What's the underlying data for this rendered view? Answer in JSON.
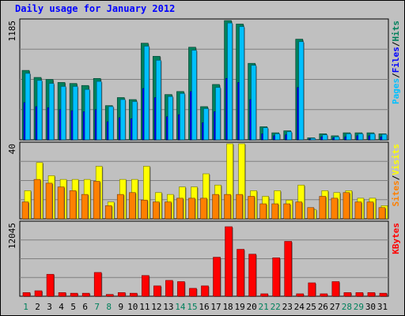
{
  "title": "Daily usage for January 2012",
  "colors": {
    "hits": "#00805c",
    "files": "#0000ff",
    "pages": "#00c0ff",
    "visits": "#ffff00",
    "sites": "#ff8000",
    "kbytes": "#ff0000",
    "weekend_day": "#00805c",
    "weekday": "#000000"
  },
  "chart_data": [
    {
      "type": "bar",
      "ymax_label": "1185",
      "ylim": [
        0,
        1185
      ],
      "grid": true,
      "right_labels": [
        {
          "text": "Pages",
          "color": "#00c0ff"
        },
        {
          "text": "/",
          "color": "#000000"
        },
        {
          "text": "Files",
          "color": "#0000ff"
        },
        {
          "text": "/",
          "color": "#000000"
        },
        {
          "text": "Hits",
          "color": "#00805c"
        }
      ],
      "categories": [
        "1",
        "2",
        "3",
        "4",
        "5",
        "6",
        "7",
        "8",
        "9",
        "10",
        "11",
        "12",
        "13",
        "14",
        "15",
        "16",
        "17",
        "18",
        "19",
        "20",
        "21",
        "22",
        "23",
        "24",
        "25",
        "26",
        "27",
        "28",
        "29",
        "30",
        "31"
      ],
      "series": [
        {
          "name": "Hits",
          "values": [
            690,
            620,
            600,
            570,
            560,
            540,
            610,
            340,
            420,
            400,
            960,
            830,
            450,
            480,
            920,
            330,
            550,
            1185,
            1150,
            760,
            130,
            70,
            90,
            1000,
            20,
            60,
            40,
            70,
            70,
            70,
            60
          ]
        },
        {
          "name": "Files",
          "values": [
            370,
            330,
            320,
            300,
            290,
            280,
            300,
            180,
            220,
            210,
            510,
            420,
            230,
            250,
            480,
            170,
            280,
            610,
            570,
            400,
            60,
            40,
            50,
            520,
            10,
            30,
            20,
            30,
            40,
            40,
            30
          ]
        },
        {
          "name": "Pages",
          "values": [
            660,
            590,
            560,
            530,
            530,
            500,
            580,
            330,
            400,
            380,
            930,
            790,
            430,
            460,
            890,
            310,
            520,
            1160,
            1125,
            740,
            120,
            60,
            80,
            975,
            15,
            50,
            30,
            60,
            60,
            60,
            55
          ]
        }
      ]
    },
    {
      "type": "bar",
      "ymax_label": "40",
      "ylim": [
        0,
        40
      ],
      "grid": true,
      "right_labels": [
        {
          "text": "Sites",
          "color": "#ff8000"
        },
        {
          "text": "/",
          "color": "#000000"
        },
        {
          "text": "Visits",
          "color": "#ffff00"
        }
      ],
      "categories": [
        "1",
        "2",
        "3",
        "4",
        "5",
        "6",
        "7",
        "8",
        "9",
        "10",
        "11",
        "12",
        "13",
        "14",
        "15",
        "16",
        "17",
        "18",
        "19",
        "20",
        "21",
        "22",
        "23",
        "24",
        "25",
        "26",
        "27",
        "28",
        "29",
        "30",
        "31"
      ],
      "series": [
        {
          "name": "Visits",
          "values": [
            15,
            30,
            23,
            21,
            21,
            21,
            28,
            9,
            21,
            21,
            28,
            14,
            13,
            17,
            17,
            24,
            18,
            40,
            40,
            15,
            12,
            15,
            10,
            18,
            5,
            15,
            14,
            15,
            11,
            11,
            7
          ]
        },
        {
          "name": "Sites",
          "values": [
            9,
            21,
            19,
            17,
            15,
            13,
            20,
            7,
            13,
            14,
            10,
            9,
            9,
            11,
            11,
            11,
            13,
            13,
            13,
            12,
            8,
            8,
            8,
            9,
            6,
            12,
            11,
            14,
            9,
            9,
            6
          ]
        }
      ]
    },
    {
      "type": "bar",
      "ymax_label": "12045",
      "ylim": [
        0,
        12045
      ],
      "grid": true,
      "right_labels": [
        {
          "text": "KBytes",
          "color": "#ff0000"
        }
      ],
      "categories": [
        "1",
        "2",
        "3",
        "4",
        "5",
        "6",
        "7",
        "8",
        "9",
        "10",
        "11",
        "12",
        "13",
        "14",
        "15",
        "16",
        "17",
        "18",
        "19",
        "20",
        "21",
        "22",
        "23",
        "24",
        "25",
        "26",
        "27",
        "28",
        "29",
        "30",
        "31"
      ],
      "series": [
        {
          "name": "KBytes",
          "values": [
            600,
            900,
            3600,
            600,
            500,
            500,
            3900,
            300,
            600,
            500,
            3400,
            1700,
            2600,
            2400,
            1300,
            1700,
            6400,
            11400,
            7700,
            6900,
            400,
            6300,
            9000,
            400,
            2200,
            400,
            2400,
            600,
            600,
            600,
            500
          ]
        }
      ]
    }
  ],
  "weekend_days": [
    "1",
    "7",
    "8",
    "14",
    "15",
    "21",
    "22",
    "28",
    "29"
  ]
}
